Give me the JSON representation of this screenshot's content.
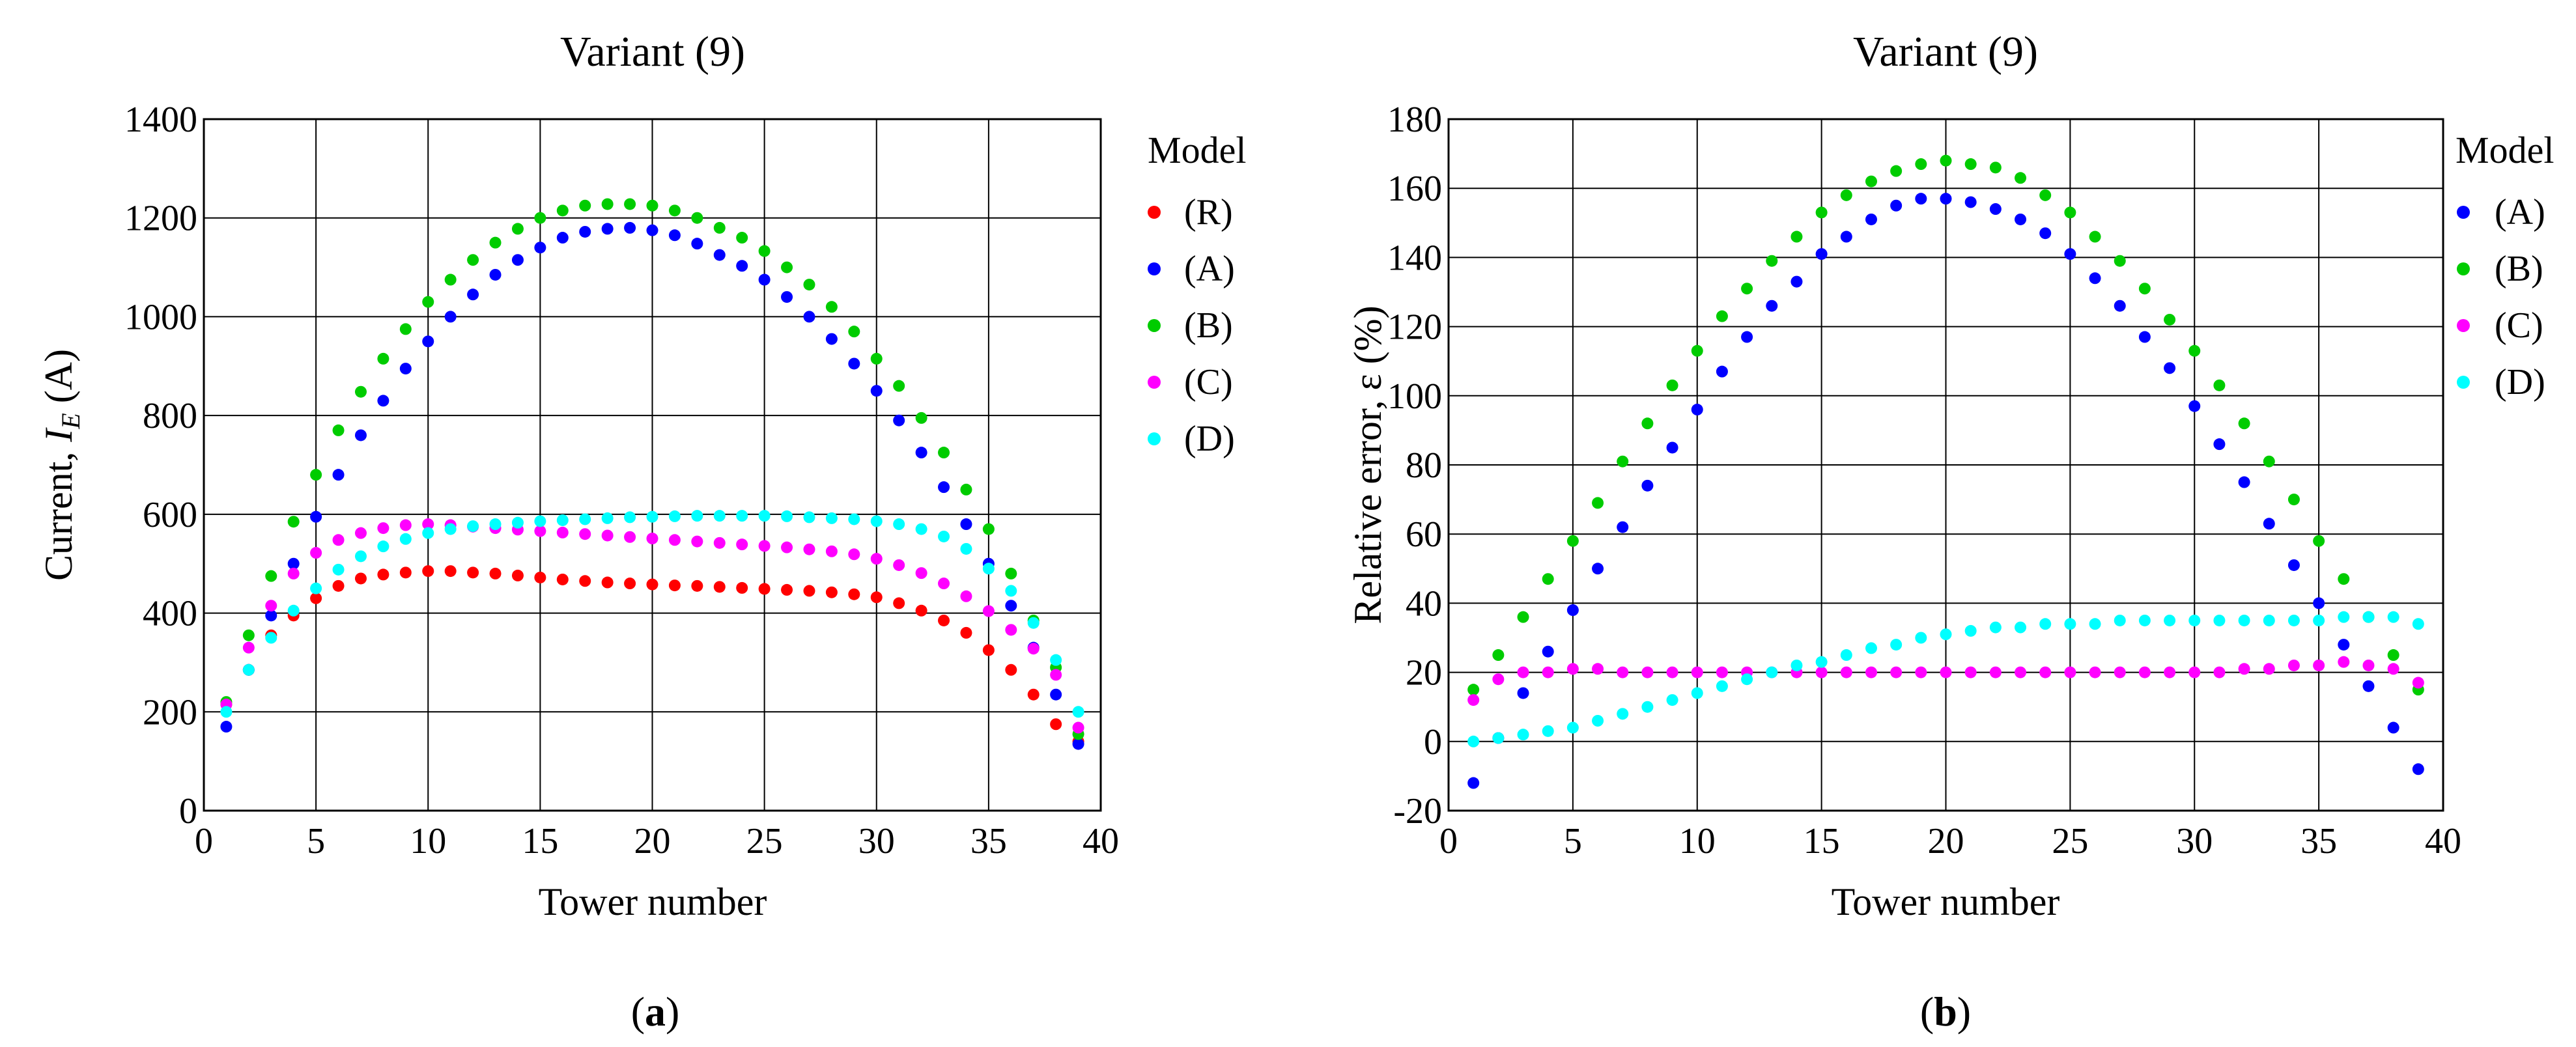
{
  "colors": {
    "R": "#ff0000",
    "A": "#0000ff",
    "B": "#00cc00",
    "C": "#ff00ff",
    "D": "#00ffff"
  },
  "chart_data": [
    {
      "type": "scatter",
      "panel_label": "a",
      "title": "Variant (9)",
      "xlabel": "Tower number",
      "ylabel_prefix": "Current, ",
      "ylabel_var": "I",
      "ylabel_sub": "E",
      "ylabel_suffix": " (A)",
      "xlim": [
        0,
        40
      ],
      "ylim": [
        0,
        1400
      ],
      "xticks": [
        0,
        5,
        10,
        15,
        20,
        25,
        30,
        35,
        40
      ],
      "yticks": [
        0,
        200,
        400,
        600,
        800,
        1000,
        1200,
        1400
      ],
      "grid": true,
      "legend_title": "Model",
      "x": [
        1,
        2,
        3,
        4,
        5,
        6,
        7,
        8,
        9,
        10,
        11,
        12,
        13,
        14,
        15,
        16,
        17,
        18,
        19,
        20,
        21,
        22,
        23,
        24,
        25,
        26,
        27,
        28,
        29,
        30,
        31,
        32,
        33,
        34,
        35,
        36,
        37,
        38,
        39
      ],
      "series": [
        {
          "name": "(R)",
          "color_key": "R",
          "values": [
            215,
            285,
            355,
            395,
            430,
            455,
            470,
            478,
            482,
            485,
            485,
            482,
            480,
            476,
            472,
            468,
            465,
            462,
            460,
            458,
            456,
            455,
            453,
            451,
            449,
            447,
            445,
            442,
            438,
            432,
            420,
            405,
            385,
            360,
            325,
            285,
            235,
            175,
            140
          ]
        },
        {
          "name": "(A)",
          "color_key": "A",
          "values": [
            170,
            285,
            395,
            500,
            595,
            680,
            760,
            830,
            895,
            950,
            1000,
            1045,
            1085,
            1115,
            1140,
            1160,
            1172,
            1178,
            1180,
            1175,
            1165,
            1148,
            1125,
            1103,
            1075,
            1040,
            1000,
            955,
            905,
            850,
            790,
            725,
            655,
            580,
            500,
            415,
            330,
            235,
            135
          ]
        },
        {
          "name": "(B)",
          "color_key": "B",
          "values": [
            220,
            355,
            475,
            585,
            680,
            770,
            848,
            915,
            975,
            1030,
            1075,
            1115,
            1150,
            1178,
            1200,
            1215,
            1225,
            1228,
            1228,
            1225,
            1215,
            1200,
            1180,
            1160,
            1133,
            1100,
            1065,
            1020,
            970,
            915,
            860,
            795,
            725,
            650,
            570,
            480,
            385,
            290,
            155
          ]
        },
        {
          "name": "(C)",
          "color_key": "C",
          "values": [
            215,
            330,
            415,
            480,
            522,
            548,
            562,
            572,
            578,
            580,
            578,
            575,
            572,
            569,
            566,
            563,
            560,
            557,
            554,
            551,
            548,
            545,
            542,
            539,
            536,
            533,
            529,
            525,
            519,
            510,
            497,
            481,
            460,
            434,
            404,
            366,
            328,
            275,
            168
          ]
        },
        {
          "name": "(D)",
          "color_key": "D",
          "values": [
            200,
            285,
            350,
            405,
            450,
            488,
            515,
            535,
            550,
            562,
            570,
            576,
            580,
            583,
            586,
            588,
            590,
            592,
            594,
            595,
            596,
            597,
            597,
            597,
            597,
            596,
            594,
            592,
            590,
            586,
            580,
            570,
            555,
            530,
            490,
            445,
            380,
            305,
            200
          ]
        }
      ]
    },
    {
      "type": "scatter",
      "panel_label": "b",
      "title": "Variant (9)",
      "xlabel": "Tower number",
      "ylabel": "Relative error, ε (%)",
      "xlim": [
        0,
        40
      ],
      "ylim": [
        -20,
        180
      ],
      "xticks": [
        0,
        5,
        10,
        15,
        20,
        25,
        30,
        35,
        40
      ],
      "yticks": [
        -20,
        0,
        20,
        40,
        60,
        80,
        100,
        120,
        140,
        160,
        180
      ],
      "grid": true,
      "legend_title": "Model",
      "x": [
        1,
        2,
        3,
        4,
        5,
        6,
        7,
        8,
        9,
        10,
        11,
        12,
        13,
        14,
        15,
        16,
        17,
        18,
        19,
        20,
        21,
        22,
        23,
        24,
        25,
        26,
        27,
        28,
        29,
        30,
        31,
        32,
        33,
        34,
        35,
        36,
        37,
        38,
        39
      ],
      "series": [
        {
          "name": "(A)",
          "color_key": "A",
          "values": [
            -12,
            1,
            14,
            26,
            38,
            50,
            62,
            74,
            85,
            96,
            107,
            117,
            126,
            133,
            141,
            146,
            151,
            155,
            157,
            157,
            156,
            154,
            151,
            147,
            141,
            134,
            126,
            117,
            108,
            97,
            86,
            75,
            63,
            51,
            40,
            28,
            16,
            4,
            -8
          ]
        },
        {
          "name": "(B)",
          "color_key": "B",
          "values": [
            15,
            25,
            36,
            47,
            58,
            69,
            81,
            92,
            103,
            113,
            123,
            131,
            139,
            146,
            153,
            158,
            162,
            165,
            167,
            168,
            167,
            166,
            163,
            158,
            153,
            146,
            139,
            131,
            122,
            113,
            103,
            92,
            81,
            70,
            58,
            47,
            36,
            25,
            15
          ]
        },
        {
          "name": "(C)",
          "color_key": "C",
          "values": [
            12,
            18,
            20,
            20,
            21,
            21,
            20,
            20,
            20,
            20,
            20,
            20,
            20,
            20,
            20,
            20,
            20,
            20,
            20,
            20,
            20,
            20,
            20,
            20,
            20,
            20,
            20,
            20,
            20,
            20,
            20,
            21,
            21,
            22,
            22,
            23,
            22,
            21,
            17
          ]
        },
        {
          "name": "(D)",
          "color_key": "D",
          "values": [
            0,
            1,
            2,
            3,
            4,
            6,
            8,
            10,
            12,
            14,
            16,
            18,
            20,
            22,
            23,
            25,
            27,
            28,
            30,
            31,
            32,
            33,
            33,
            34,
            34,
            34,
            35,
            35,
            35,
            35,
            35,
            35,
            35,
            35,
            35,
            36,
            36,
            36,
            34
          ]
        }
      ]
    }
  ]
}
